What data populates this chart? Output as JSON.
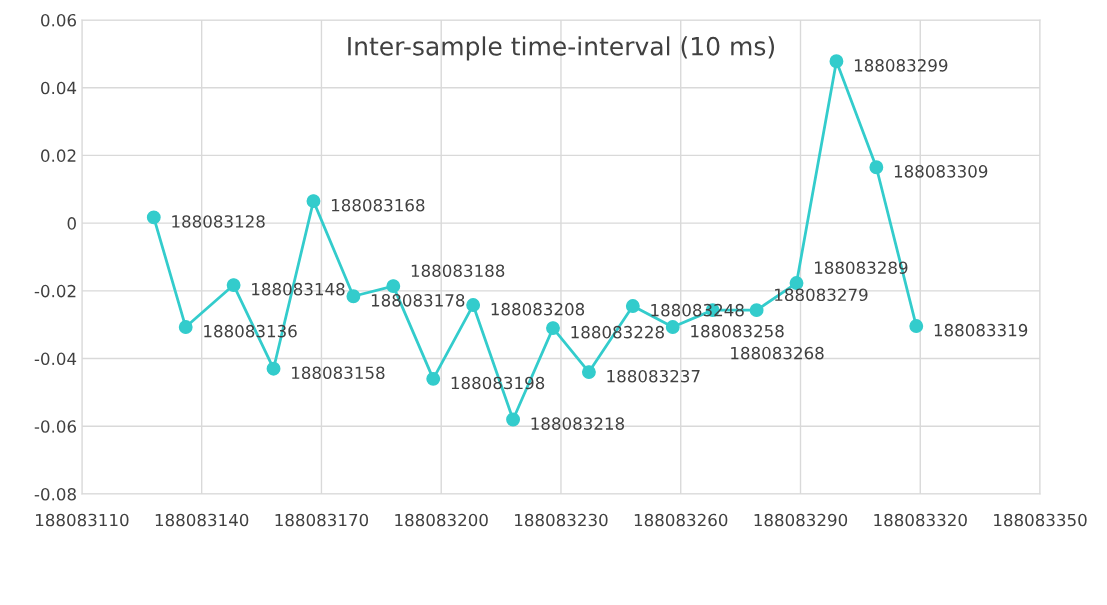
{
  "chart_data": {
    "type": "line",
    "title": "Inter-sample time-interval (10 ms)",
    "x": [
      188083128,
      188083136,
      188083148,
      188083158,
      188083168,
      188083178,
      188083188,
      188083198,
      188083208,
      188083218,
      188083228,
      188083237,
      188083248,
      188083258,
      188083268,
      188083279,
      188083289,
      188083299,
      188083309,
      188083319
    ],
    "series": [
      {
        "color": "#33cccc",
        "values": [
          0.0017,
          -0.0307,
          -0.0183,
          -0.043,
          0.0065,
          -0.0216,
          -0.0186,
          -0.046,
          -0.0242,
          -0.058,
          -0.031,
          -0.044,
          -0.0245,
          -0.0307,
          -0.0257,
          -0.0257,
          -0.0177,
          0.0478,
          0.0165,
          -0.0304
        ]
      }
    ],
    "annotations": [
      {
        "text": "188083128",
        "x": 188083128,
        "y": 0.0017
      },
      {
        "text": "188083136",
        "x": 188083136,
        "y": -0.0307
      },
      {
        "text": "188083148",
        "x": 188083148,
        "y": -0.0183
      },
      {
        "text": "188083158",
        "x": 188083158,
        "y": -0.043
      },
      {
        "text": "188083168",
        "x": 188083168,
        "y": 0.0065
      },
      {
        "text": "188083178",
        "x": 188083178,
        "y": -0.0216
      },
      {
        "text": "188083188",
        "x": 188083188,
        "y": -0.0186
      },
      {
        "text": "188083198",
        "x": 188083198,
        "y": -0.046
      },
      {
        "text": "188083208",
        "x": 188083208,
        "y": -0.0242
      },
      {
        "text": "188083218",
        "x": 188083218,
        "y": -0.058
      },
      {
        "text": "188083228",
        "x": 188083228,
        "y": -0.031
      },
      {
        "text": "188083237",
        "x": 188083237,
        "y": -0.044
      },
      {
        "text": "188083248",
        "x": 188083248,
        "y": -0.0245
      },
      {
        "text": "188083258",
        "x": 188083258,
        "y": -0.0307
      },
      {
        "text": "188083268",
        "x": 188083268,
        "y": -0.0257
      },
      {
        "text": "188083279",
        "x": 188083279,
        "y": -0.0257
      },
      {
        "text": "188083289",
        "x": 188083289,
        "y": -0.0177
      },
      {
        "text": "188083299",
        "x": 188083299,
        "y": 0.0478
      },
      {
        "text": "188083309",
        "x": 188083309,
        "y": 0.0165
      },
      {
        "text": "188083319",
        "x": 188083319,
        "y": -0.0304
      }
    ],
    "xlim": [
      188083110,
      188083350
    ],
    "xticks": [
      188083110,
      188083140,
      188083170,
      188083200,
      188083230,
      188083260,
      188083290,
      188083320,
      188083350
    ],
    "ylim": [
      -0.08,
      0.06
    ],
    "yticks": [
      -0.08,
      -0.06,
      -0.04,
      -0.02,
      0,
      0.02,
      0.04,
      0.06
    ],
    "grid": true,
    "marker": "circle",
    "line_style": "solid",
    "legend": false
  }
}
